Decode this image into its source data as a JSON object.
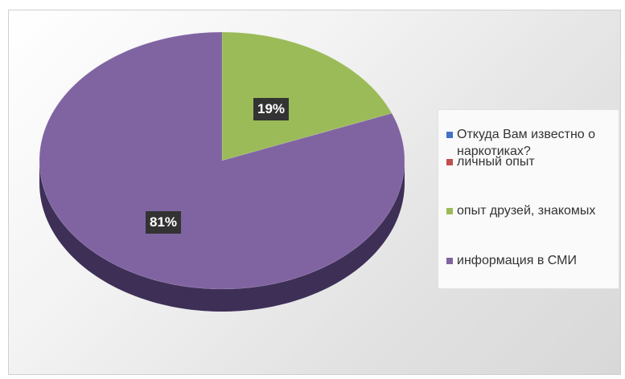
{
  "chart_data": {
    "type": "pie",
    "style": "3d",
    "legend_position": "right",
    "legend": [
      {
        "label": "Откуда Вам известно о наркотиках?",
        "color": "#4472C4"
      },
      {
        "label": "личный опыт",
        "color": "#C0504D"
      },
      {
        "label": "опыт друзей, знакомых",
        "color": "#9BBB59"
      },
      {
        "label": "информация в СМИ",
        "color": "#8064A2"
      }
    ],
    "slices": [
      {
        "category": "Откуда Вам известно о наркотиках?",
        "value": 0,
        "color": "#4472C4"
      },
      {
        "category": "личный опыт",
        "value": 0,
        "color": "#C0504D"
      },
      {
        "category": "опыт друзей, знакомых",
        "value": 19,
        "label": "19%",
        "color": "#9BBB59",
        "side_color": "#6f8a3c"
      },
      {
        "category": "информация в СМИ",
        "value": 81,
        "label": "81%",
        "color": "#8064A2",
        "side_color": "#3e2f57"
      }
    ]
  }
}
